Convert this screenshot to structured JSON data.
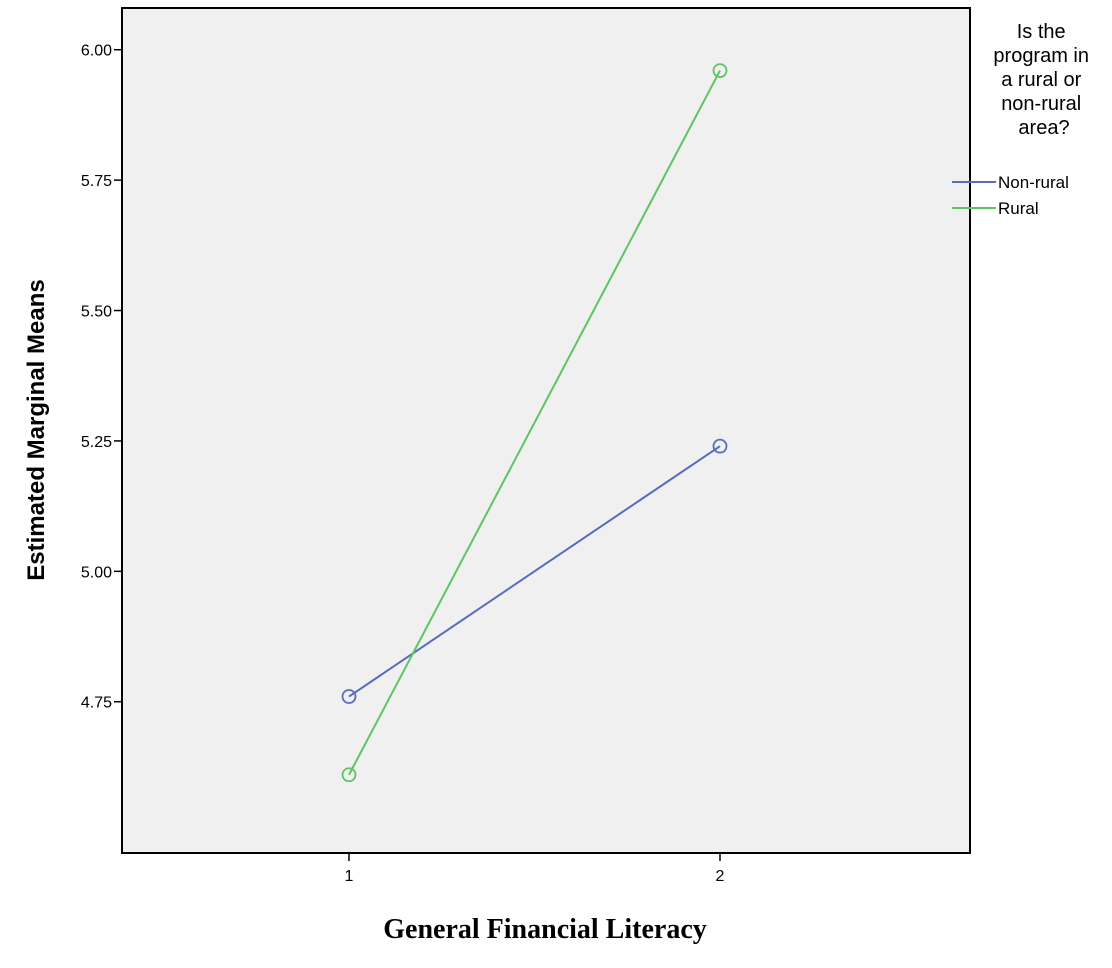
{
  "chart_data": {
    "type": "line",
    "x": [
      "1",
      "2"
    ],
    "series": [
      {
        "name": "Non-rural",
        "values": [
          4.76,
          5.24
        ],
        "color": "#5a6bbf"
      },
      {
        "name": "Rural",
        "values": [
          4.61,
          5.96
        ],
        "color": "#5ec462"
      }
    ],
    "xlabel": "General Financial Literacy",
    "ylabel": "Estimated Marginal Means",
    "ylim": [
      4.46,
      6.08
    ],
    "yticks": [
      4.75,
      5.0,
      5.25,
      5.5,
      5.75,
      6.0
    ],
    "ytick_labels": [
      "4.75",
      "5.00",
      "5.25",
      "5.50",
      "5.75",
      "6.00"
    ],
    "xticks": [
      "1",
      "2"
    ],
    "legend": {
      "title_lines": [
        "Is the",
        "program in",
        "a rural or",
        "non-rural",
        "area?"
      ],
      "placement": "right"
    },
    "grid": false,
    "plot_background": "#f0f0f0"
  }
}
